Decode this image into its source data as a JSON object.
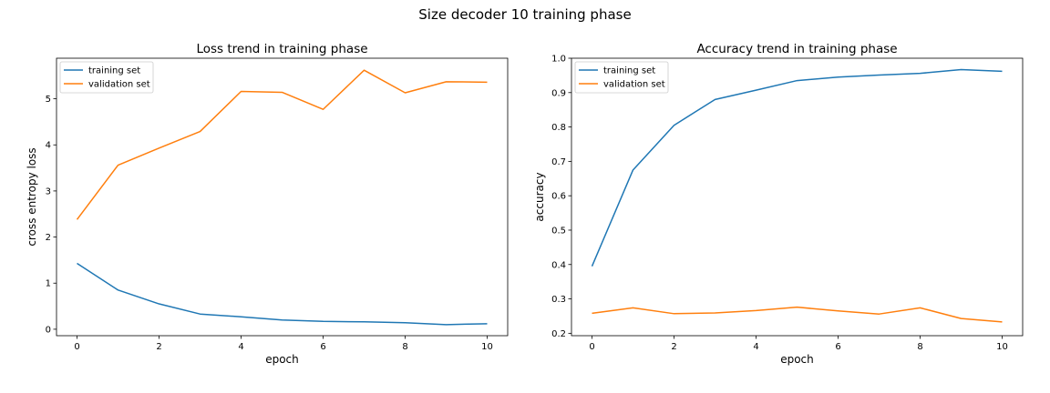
{
  "figure_title": "Size decoder 10 training phase",
  "colors": {
    "training": "#1f77b4",
    "validation": "#ff7f0e"
  },
  "chart_data": [
    {
      "type": "line",
      "title": "Loss trend in training phase",
      "xlabel": "epoch",
      "ylabel": "cross entropy loss",
      "xlim": [
        -0.5,
        10.5
      ],
      "ylim": [
        -0.14,
        5.88
      ],
      "xticks": [
        0,
        2,
        4,
        6,
        8,
        10
      ],
      "yticks": [
        0,
        1,
        2,
        3,
        4,
        5
      ],
      "legend_position": "top-left",
      "grid": false,
      "x": [
        0,
        1,
        2,
        3,
        4,
        5,
        6,
        7,
        8,
        9,
        10
      ],
      "series": [
        {
          "name": "training set",
          "color": "#1f77b4",
          "values": [
            1.43,
            0.85,
            0.55,
            0.33,
            0.27,
            0.2,
            0.17,
            0.16,
            0.14,
            0.1,
            0.12
          ]
        },
        {
          "name": "validation set",
          "color": "#ff7f0e",
          "values": [
            2.38,
            3.56,
            3.93,
            4.29,
            5.16,
            5.14,
            4.77,
            5.62,
            5.13,
            5.37,
            5.36
          ]
        }
      ]
    },
    {
      "type": "line",
      "title": "Accuracy trend in training phase",
      "xlabel": "epoch",
      "ylabel": "accuracy",
      "xlim": [
        -0.5,
        10.5
      ],
      "ylim": [
        0.193,
        1.0
      ],
      "xticks": [
        0,
        2,
        4,
        6,
        8,
        10
      ],
      "yticks": [
        0.2,
        0.3,
        0.4,
        0.5,
        0.6,
        0.7,
        0.8,
        0.9,
        1.0
      ],
      "legend_position": "top-left",
      "grid": false,
      "x": [
        0,
        1,
        2,
        3,
        4,
        5,
        6,
        7,
        8,
        9,
        10
      ],
      "series": [
        {
          "name": "training set",
          "color": "#1f77b4",
          "values": [
            0.395,
            0.675,
            0.805,
            0.88,
            0.907,
            0.935,
            0.945,
            0.951,
            0.956,
            0.967,
            0.962
          ]
        },
        {
          "name": "validation set",
          "color": "#ff7f0e",
          "values": [
            0.258,
            0.274,
            0.257,
            0.259,
            0.266,
            0.276,
            0.265,
            0.256,
            0.274,
            0.243,
            0.233
          ]
        }
      ]
    }
  ]
}
